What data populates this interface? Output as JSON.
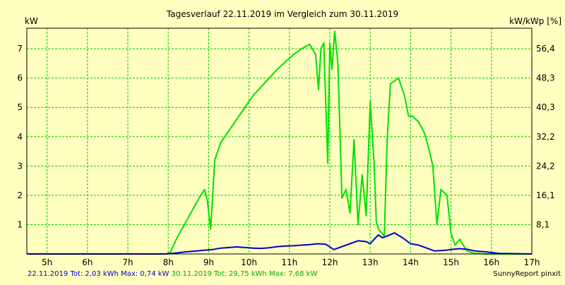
{
  "chart_data": {
    "type": "line",
    "title": "Tagesverlauf 22.11.2019 im Vergleich zum 30.11.2019",
    "ylabel": "kW",
    "ylabel_right": "kW/kWp [%]",
    "xlim": [
      4.5,
      17.0
    ],
    "ylim": [
      0,
      7.7
    ],
    "x_ticks": [
      5,
      6,
      7,
      8,
      9,
      10,
      11,
      12,
      13,
      14,
      15,
      16,
      17
    ],
    "x_tick_labels": [
      "5h",
      "6h",
      "7h",
      "8h",
      "9h",
      "10h",
      "11h",
      "12h",
      "13h",
      "14h",
      "15h",
      "16h",
      "17h"
    ],
    "y_ticks": [
      1,
      2,
      3,
      4,
      5,
      6,
      7
    ],
    "y_tick_labels": [
      "1",
      "2",
      "3",
      "4",
      "5",
      "6",
      "7"
    ],
    "y2_ticks": [
      1,
      2,
      3,
      4,
      5,
      6,
      7
    ],
    "y2_tick_labels": [
      "8,1",
      "16,1",
      "24,2",
      "32,2",
      "40,3",
      "48,3",
      "56,4"
    ],
    "grid": true,
    "series": [
      {
        "name": "22.11.2019",
        "color": "#0000cc",
        "x": [
          4.5,
          7.95,
          8.1,
          8.3,
          8.5,
          8.7,
          8.9,
          9.1,
          9.3,
          9.5,
          9.7,
          9.9,
          10.1,
          10.3,
          10.5,
          10.7,
          10.9,
          11.1,
          11.3,
          11.5,
          11.7,
          11.9,
          12.1,
          12.3,
          12.5,
          12.7,
          12.9,
          13.0,
          13.1,
          13.2,
          13.3,
          13.4,
          13.6,
          13.8,
          14.0,
          14.2,
          14.4,
          14.6,
          14.8,
          15.0,
          15.2,
          15.4,
          15.6,
          15.8,
          16.0,
          16.2,
          17.0
        ],
        "y": [
          0,
          0,
          0.02,
          0.05,
          0.08,
          0.1,
          0.13,
          0.15,
          0.2,
          0.22,
          0.24,
          0.22,
          0.2,
          0.19,
          0.21,
          0.25,
          0.27,
          0.28,
          0.3,
          0.32,
          0.35,
          0.33,
          0.15,
          0.25,
          0.35,
          0.45,
          0.42,
          0.35,
          0.5,
          0.65,
          0.55,
          0.6,
          0.72,
          0.55,
          0.35,
          0.3,
          0.2,
          0.1,
          0.12,
          0.15,
          0.18,
          0.16,
          0.1,
          0.08,
          0.05,
          0.02,
          0.0
        ]
      },
      {
        "name": "30.11.2019",
        "color": "#00e000",
        "x": [
          4.5,
          7.95,
          8.05,
          8.2,
          8.4,
          8.6,
          8.8,
          8.9,
          8.97,
          9.05,
          9.15,
          9.3,
          9.5,
          9.7,
          9.9,
          10.1,
          10.3,
          10.5,
          10.7,
          10.9,
          11.1,
          11.3,
          11.5,
          11.65,
          11.72,
          11.78,
          11.85,
          11.95,
          12.0,
          12.05,
          12.12,
          12.2,
          12.3,
          12.4,
          12.5,
          12.6,
          12.7,
          12.8,
          12.9,
          13.0,
          13.1,
          13.15,
          13.22,
          13.3,
          13.35,
          13.42,
          13.5,
          13.7,
          13.85,
          13.95,
          14.05,
          14.2,
          14.35,
          14.45,
          14.55,
          14.65,
          14.75,
          14.9,
          15.0,
          15.1,
          15.22,
          15.3,
          15.4,
          15.5,
          15.6,
          15.7,
          15.8,
          15.95,
          16.05,
          17.0
        ],
        "y": [
          0,
          0,
          0.05,
          0.5,
          1.0,
          1.5,
          2.0,
          2.2,
          1.8,
          0.85,
          3.2,
          3.8,
          4.2,
          4.6,
          5.0,
          5.4,
          5.7,
          6.0,
          6.3,
          6.55,
          6.8,
          7.0,
          7.15,
          6.8,
          5.6,
          7.0,
          7.2,
          3.1,
          7.2,
          6.3,
          7.6,
          6.5,
          1.9,
          2.2,
          1.4,
          3.9,
          1.0,
          2.7,
          1.3,
          5.2,
          3.0,
          1.1,
          0.8,
          0.7,
          0.6,
          3.9,
          5.8,
          6.0,
          5.4,
          4.7,
          4.7,
          4.5,
          4.1,
          3.6,
          3.0,
          1.0,
          2.2,
          2.0,
          0.7,
          0.3,
          0.5,
          0.3,
          0.1,
          0.05,
          0.02,
          0.02,
          0.0,
          0.0,
          0.0,
          0.0
        ]
      }
    ]
  },
  "footer": {
    "left_a": "22.11.2019 Tot: 2,03 kWh Max: 0,74 kW",
    "left_b": "30.11.2019 Tot: 29,75 kWh Max: 7,68 kW",
    "right": "SunnyReport pinxit"
  },
  "colors": {
    "background": "#ffffc0",
    "grid": "#00cc00",
    "series_a": "#0000cc",
    "series_b": "#00e000"
  }
}
